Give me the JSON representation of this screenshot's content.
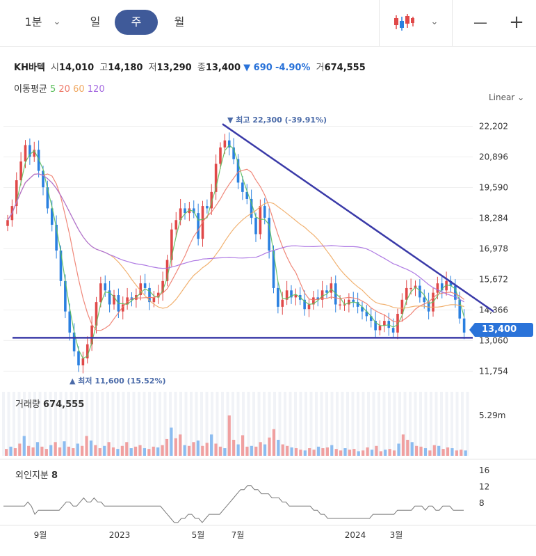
{
  "toolbar": {
    "interval_1m": "1분",
    "day": "일",
    "week": "주",
    "month": "월",
    "candle_icon": "candlestick-icon",
    "minus": "—",
    "plus": "+"
  },
  "quote": {
    "name": "KH바텍",
    "open_label": "시",
    "open": "14,010",
    "high_label": "고",
    "high": "14,180",
    "low_label": "저",
    "low": "13,290",
    "close_label": "종",
    "close": "13,400",
    "change": "▼ 690",
    "change_pct": "-4.90%",
    "volume_label": "거",
    "volume": "674,555"
  },
  "ma_legend": {
    "label": "이동평균",
    "ma5": "5",
    "ma20": "20",
    "ma60": "60",
    "ma120": "120"
  },
  "scale_select": "Linear ⌄",
  "colors": {
    "up": "#e04848",
    "down": "#2a80e0",
    "ma5": "#5cbf5c",
    "ma20": "#ee7a6a",
    "ma60": "#f0a860",
    "ma120": "#a56ae0",
    "trend": "#3a3aa8"
  },
  "chart_data": {
    "type": "candlestick",
    "x_ticks": [
      "9월",
      "2023",
      "5월",
      "7월",
      "2024",
      "3월"
    ],
    "y_ticks": [
      22202,
      20896,
      19590,
      18284,
      16978,
      15672,
      14366,
      13060,
      11754
    ],
    "y_tick_labels": [
      "22,202",
      "20,896",
      "19,590",
      "18,284",
      "16,978",
      "15,672",
      "14,366",
      "13,060",
      "11,754"
    ],
    "ylim": [
      11200,
      22900
    ],
    "high_annotation": "▼ 최고 22,300 (-39.91%)",
    "low_annotation": "▲ 최저 11,600 (15.52%)",
    "last_price_label": "13,400",
    "close_series_approx": [
      18200,
      18800,
      19900,
      20700,
      21400,
      20900,
      21200,
      20300,
      19600,
      18700,
      18000,
      16900,
      15600,
      14300,
      13400,
      12600,
      12000,
      12300,
      12900,
      13700,
      14700,
      15500,
      15200,
      14600,
      15000,
      14300,
      14600,
      14900,
      14800,
      15000,
      15500,
      15300,
      14700,
      14900,
      15100,
      15600,
      16500,
      17800,
      18200,
      18700,
      18500,
      18700,
      18500,
      17400,
      18800,
      18700,
      19400,
      20600,
      21300,
      21600,
      21300,
      20800,
      19800,
      19400,
      19100,
      18300,
      17600,
      18800,
      18300,
      16900,
      15300,
      14500,
      14800,
      15200,
      14900,
      15000,
      14800,
      14400,
      14600,
      14900,
      14800,
      15200,
      15100,
      15500,
      14600,
      14600,
      14600,
      14800,
      14700,
      14500,
      14300,
      14100,
      13900,
      13500,
      13700,
      13900,
      13600,
      13400,
      14200,
      14800,
      15300,
      15300,
      15400,
      14900,
      14700,
      14300,
      15100,
      15500,
      15200,
      15600,
      15400,
      14800,
      14000,
      13400
    ],
    "volume_label": "거래량",
    "volume_value": "674,555",
    "volume_axis_label": "5.29m",
    "volume_series_approx": [
      0.9,
      1.2,
      1.0,
      1.6,
      2.6,
      1.3,
      1.1,
      1.8,
      1.2,
      0.9,
      1.4,
      1.8,
      1.1,
      1.9,
      1.2,
      1.0,
      1.6,
      1.3,
      2.6,
      2.0,
      1.4,
      1.0,
      1.3,
      1.8,
      1.1,
      0.9,
      1.3,
      1.8,
      1.0,
      1.2,
      1.4,
      1.0,
      0.9,
      1.2,
      1.1,
      1.4,
      2.2,
      3.7,
      2.3,
      2.8,
      1.4,
      1.3,
      1.8,
      2.0,
      1.3,
      1.7,
      2.8,
      1.6,
      1.2,
      1.0,
      5.3,
      2.1,
      1.5,
      2.7,
      1.2,
      1.3,
      1.2,
      1.8,
      1.5,
      2.4,
      3.5,
      2.1,
      1.5,
      1.3,
      1.1,
      1.0,
      0.8,
      0.7,
      1.0,
      0.8,
      1.2,
      1.0,
      1.1,
      1.4,
      0.9,
      0.7,
      1.0,
      0.8,
      0.9,
      0.6,
      0.7,
      1.1,
      0.8,
      1.3,
      0.6,
      0.8,
      0.9,
      0.7,
      1.6,
      2.8,
      2.1,
      1.8,
      1.3,
      1.2,
      1.0,
      0.7,
      1.4,
      1.3,
      0.9,
      1.1,
      1.0,
      0.7,
      0.8,
      0.7
    ],
    "foreign_label": "외인지분",
    "foreign_value": "8",
    "foreign_ticks": [
      "16",
      "12",
      "8"
    ],
    "foreign_series_approx": [
      9,
      9,
      9,
      9,
      9,
      9,
      9,
      10,
      9,
      7,
      8,
      8,
      8,
      8,
      8,
      8,
      8,
      9,
      10,
      10,
      9,
      9,
      10,
      11,
      10,
      10,
      11,
      10,
      10,
      9,
      9,
      9,
      9,
      9,
      9,
      9,
      9,
      9,
      9,
      9,
      9,
      9,
      9,
      9,
      9,
      9,
      8,
      7,
      6,
      5,
      5,
      6,
      6,
      7,
      7,
      6,
      6,
      5,
      6,
      7,
      7,
      7,
      7,
      8,
      9,
      10,
      11,
      12,
      13,
      13,
      14,
      14,
      13,
      13,
      12,
      12,
      12,
      11,
      11,
      11,
      10,
      10,
      9,
      9,
      9,
      9,
      9,
      9,
      9,
      8,
      8,
      7,
      7,
      6,
      6,
      6,
      6,
      6,
      6,
      6,
      6,
      6,
      6,
      6,
      6,
      6,
      7,
      7,
      7,
      7,
      7,
      7,
      7,
      8,
      8,
      8,
      8,
      8,
      9,
      9,
      9,
      8,
      9,
      9,
      8,
      8,
      9,
      9,
      9,
      8,
      8,
      8,
      8
    ]
  }
}
